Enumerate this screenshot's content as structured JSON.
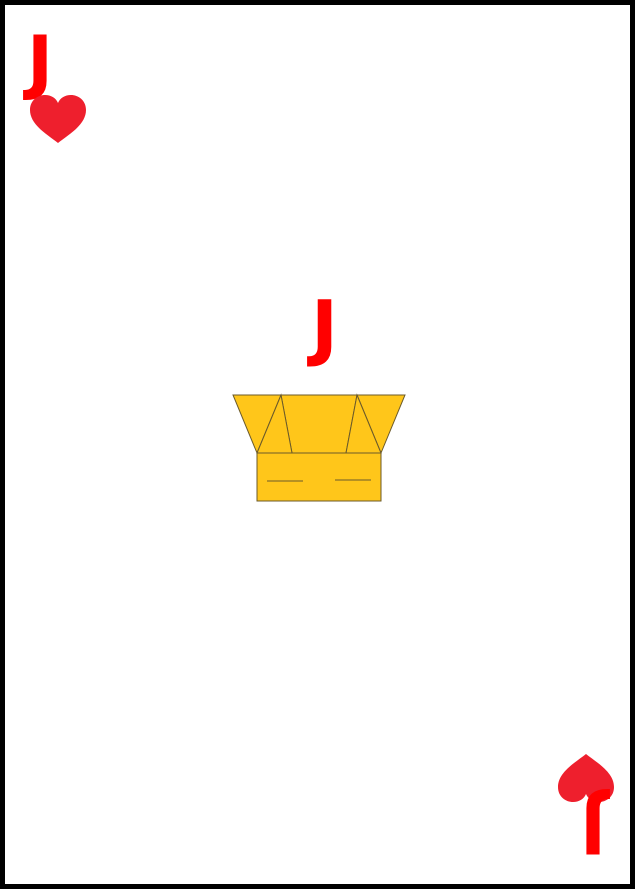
{
  "card": {
    "rank": "J",
    "suit": "hearts",
    "suit_icon": "heart-icon",
    "center_figure": "crown-icon",
    "colors": {
      "rank": "#ff0000",
      "suit": "#ee1f2d",
      "crown_fill": "#ffc61a",
      "crown_stroke": "#6b5a2a",
      "border": "#000000",
      "background": "#ffffff"
    }
  }
}
